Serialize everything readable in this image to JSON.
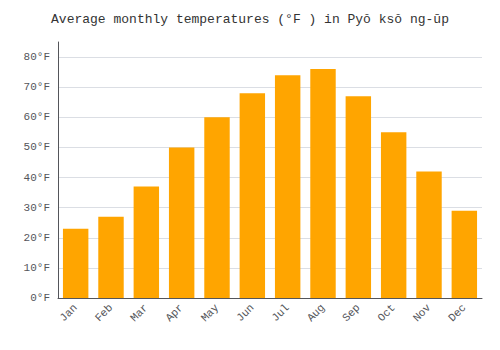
{
  "chart_data": {
    "type": "bar",
    "title": "Average monthly temperatures (°F ) in Pyŏ ksŏ ng-ūp",
    "categories": [
      "Jan",
      "Feb",
      "Mar",
      "Apr",
      "May",
      "Jun",
      "Jul",
      "Aug",
      "Sep",
      "Oct",
      "Nov",
      "Dec"
    ],
    "values": [
      23,
      27,
      37,
      50,
      60,
      68,
      74,
      76,
      67,
      55,
      42,
      29
    ],
    "color": "#FFA500",
    "ylim": [
      0,
      85
    ],
    "yticks": [
      {
        "value": 0,
        "label": "0°F"
      },
      {
        "value": 10,
        "label": "10°F"
      },
      {
        "value": 20,
        "label": "20°F"
      },
      {
        "value": 30,
        "label": "30°F"
      },
      {
        "value": 40,
        "label": "40°F"
      },
      {
        "value": 50,
        "label": "50°F"
      },
      {
        "value": 60,
        "label": "60°F"
      },
      {
        "value": 70,
        "label": "70°F"
      },
      {
        "value": 80,
        "label": "80°F"
      }
    ],
    "grid": true
  }
}
